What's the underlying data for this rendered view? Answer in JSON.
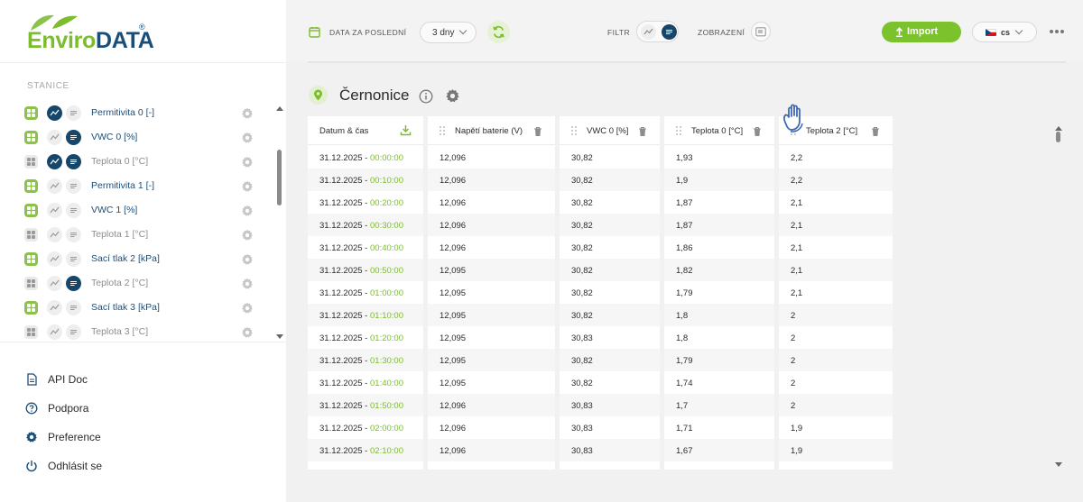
{
  "app": {
    "logo_part1": "Enviro",
    "logo_part2": "DATA",
    "logo_mark": "®",
    "brand_green": "#7bbd2c",
    "brand_blue": "#17466b"
  },
  "sidebar": {
    "stations_label": "STANICE",
    "sensors": [
      {
        "label": "Permitivita 0 [-]",
        "active": true,
        "chart": true,
        "table": false
      },
      {
        "label": "VWC 0 [%]",
        "active": true,
        "chart": false,
        "table": true
      },
      {
        "label": "Teplota 0 [°C]",
        "active": false,
        "chart": true,
        "table": true
      },
      {
        "label": "Permitivita 1 [-]",
        "active": true,
        "chart": false,
        "table": false
      },
      {
        "label": "VWC 1 [%]",
        "active": true,
        "chart": false,
        "table": false
      },
      {
        "label": "Teplota 1 [°C]",
        "active": false,
        "chart": false,
        "table": false
      },
      {
        "label": "Sací tlak 2 [kPa]",
        "active": true,
        "chart": false,
        "table": false
      },
      {
        "label": "Teplota 2 [°C]",
        "active": false,
        "chart": false,
        "table": true
      },
      {
        "label": "Sací tlak 3 [kPa]",
        "active": true,
        "chart": false,
        "table": false
      },
      {
        "label": "Teplota 3 [°C]",
        "active": false,
        "chart": false,
        "table": false
      }
    ],
    "nav": [
      {
        "label": "API Doc",
        "icon": "document-icon"
      },
      {
        "label": "Podpora",
        "icon": "help-icon"
      },
      {
        "label": "Preference",
        "icon": "gear-icon"
      },
      {
        "label": "Odhlásit se",
        "icon": "power-icon"
      }
    ]
  },
  "toolbar": {
    "data_range_label": "DATA ZA POSLEDNÍ",
    "range_value": "3 dny",
    "filter_label": "FILTR",
    "view_label": "ZOBRAZENÍ",
    "import_label": "Import",
    "language": "cs"
  },
  "station": {
    "name": "Černonice"
  },
  "table": {
    "columns": [
      "Datum & čas",
      "Napětí baterie (V)",
      "VWC 0 [%]",
      "Teplota 0 [°C]",
      "Teplota 2 [°C]"
    ],
    "rows": [
      {
        "date": "31.12.2025",
        "time": "00:00:00",
        "v": "12,096",
        "vwc": "30,82",
        "t0": "1,93",
        "t2": "2,2"
      },
      {
        "date": "31.12.2025",
        "time": "00:10:00",
        "v": "12,096",
        "vwc": "30,82",
        "t0": "1,9",
        "t2": "2,2"
      },
      {
        "date": "31.12.2025",
        "time": "00:20:00",
        "v": "12,096",
        "vwc": "30,82",
        "t0": "1,87",
        "t2": "2,1"
      },
      {
        "date": "31.12.2025",
        "time": "00:30:00",
        "v": "12,096",
        "vwc": "30,82",
        "t0": "1,87",
        "t2": "2,1"
      },
      {
        "date": "31.12.2025",
        "time": "00:40:00",
        "v": "12,096",
        "vwc": "30,82",
        "t0": "1,86",
        "t2": "2,1"
      },
      {
        "date": "31.12.2025",
        "time": "00:50:00",
        "v": "12,095",
        "vwc": "30,82",
        "t0": "1,82",
        "t2": "2,1"
      },
      {
        "date": "31.12.2025",
        "time": "01:00:00",
        "v": "12,095",
        "vwc": "30,82",
        "t0": "1,79",
        "t2": "2,1"
      },
      {
        "date": "31.12.2025",
        "time": "01:10:00",
        "v": "12,095",
        "vwc": "30,82",
        "t0": "1,8",
        "t2": "2"
      },
      {
        "date": "31.12.2025",
        "time": "01:20:00",
        "v": "12,095",
        "vwc": "30,83",
        "t0": "1,8",
        "t2": "2"
      },
      {
        "date": "31.12.2025",
        "time": "01:30:00",
        "v": "12,095",
        "vwc": "30,82",
        "t0": "1,79",
        "t2": "2"
      },
      {
        "date": "31.12.2025",
        "time": "01:40:00",
        "v": "12,095",
        "vwc": "30,82",
        "t0": "1,74",
        "t2": "2"
      },
      {
        "date": "31.12.2025",
        "time": "01:50:00",
        "v": "12,096",
        "vwc": "30,83",
        "t0": "1,7",
        "t2": "2"
      },
      {
        "date": "31.12.2025",
        "time": "02:00:00",
        "v": "12,096",
        "vwc": "30,83",
        "t0": "1,71",
        "t2": "1,9"
      },
      {
        "date": "31.12.2025",
        "time": "02:10:00",
        "v": "12,096",
        "vwc": "30,83",
        "t0": "1,67",
        "t2": "1,9"
      }
    ]
  }
}
